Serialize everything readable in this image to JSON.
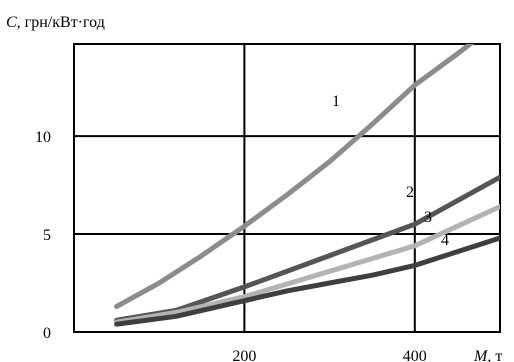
{
  "chart_data": {
    "type": "line",
    "title": "",
    "ylabel_var": "C",
    "ylabel_rest": ", грн/кВт·год",
    "xlabel_var": "M",
    "xlabel_rest": ", т",
    "xlim": [
      0,
      500
    ],
    "ylim": [
      0,
      14.7
    ],
    "xticks": [
      200,
      400
    ],
    "yticks": [
      0,
      5,
      10
    ],
    "grid": true,
    "series": [
      {
        "label": "1",
        "color": "#8c8c8c",
        "x": [
          50,
          100,
          150,
          200,
          250,
          300,
          350,
          400,
          450,
          480
        ],
        "y": [
          1.3,
          2.5,
          3.9,
          5.4,
          7.0,
          8.7,
          10.6,
          12.6,
          14.2,
          15.2
        ]
      },
      {
        "label": "2",
        "color": "#555555",
        "x": [
          50,
          120,
          200,
          300,
          400,
          500
        ],
        "y": [
          0.6,
          1.1,
          2.3,
          3.9,
          5.5,
          7.9
        ]
      },
      {
        "label": "3",
        "color": "#b3b3b3",
        "x": [
          50,
          120,
          200,
          300,
          400,
          500
        ],
        "y": [
          0.5,
          1.0,
          1.8,
          3.1,
          4.4,
          6.4
        ]
      },
      {
        "label": "4",
        "color": "#3f3f3f",
        "x": [
          50,
          120,
          200,
          250,
          300,
          350,
          400,
          500
        ],
        "y": [
          0.4,
          0.8,
          1.6,
          2.1,
          2.5,
          2.9,
          3.4,
          4.8
        ]
      }
    ]
  }
}
